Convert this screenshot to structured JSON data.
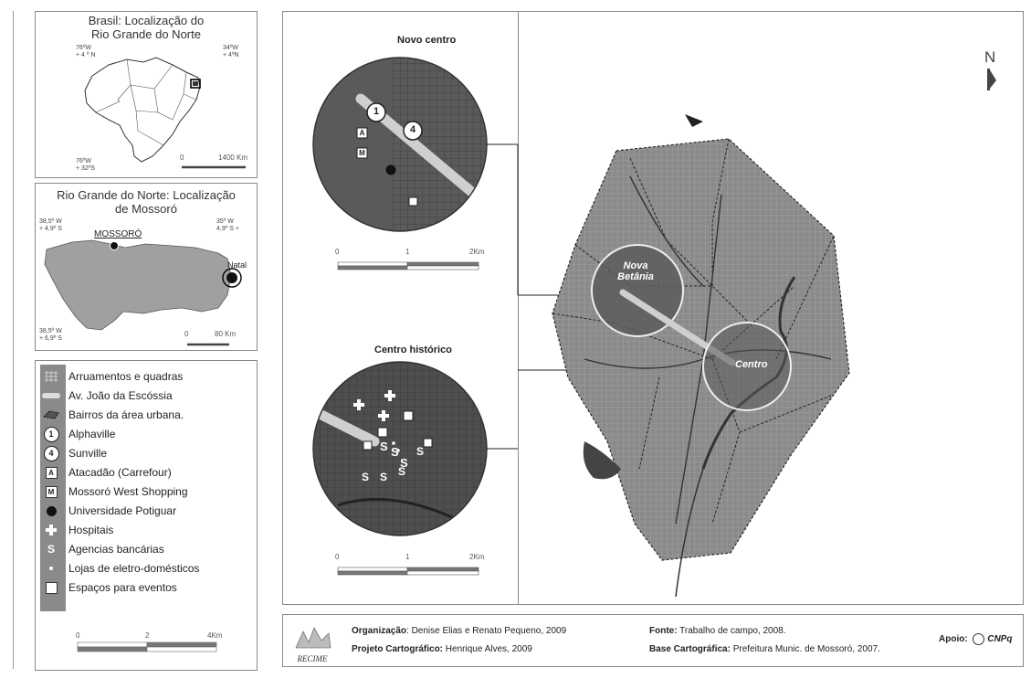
{
  "brazil_panel": {
    "title_line1": "Brasil: Localização do",
    "title_line2": "Rio Grande do Norte",
    "coord_tl_lon": "76ºW",
    "coord_tl_lat": "+ 4 º N",
    "coord_tr_lon": "34ºW",
    "coord_tr_lat": "+ 4ºN",
    "coord_bl_lon": "76ºW",
    "coord_bl_lat": "+ 32ºS",
    "scale_min": "0",
    "scale_max": "1400 Km"
  },
  "rn_panel": {
    "title_line1": "Rio Grande do Norte: Localização",
    "title_line2": "de Mossoró",
    "coord_tl_lon": "38,5º W",
    "coord_tl_lat": "+ 4,9º S",
    "coord_tr_lon": "35º W",
    "coord_tr_lat": "4,9º S  +",
    "coord_bl_lon": "38,5º W",
    "coord_bl_lat": "+ 6,9º S",
    "city_mossoro": "MOSSORÓ",
    "city_natal": "Natal",
    "scale_min": "0",
    "scale_max": "80 Km"
  },
  "legend": {
    "items": [
      {
        "symbol": "blocks-icon",
        "label": "Arruamentos e quadras"
      },
      {
        "symbol": "avenue-icon",
        "label": "Av. João da Escóssia"
      },
      {
        "symbol": "district-boundary-icon",
        "label": "Bairros da área urbana."
      },
      {
        "symbol": "circle-number-icon",
        "glyph": "1",
        "label": "Alphaville"
      },
      {
        "symbol": "circle-number-icon",
        "glyph": "4",
        "label": "Sunville"
      },
      {
        "symbol": "square-letter-icon",
        "glyph": "A",
        "label": "Atacadão (Carrefour)"
      },
      {
        "symbol": "square-letter-icon",
        "glyph": "M",
        "label": "Mossoró West Shopping"
      },
      {
        "symbol": "black-dot-icon",
        "label": "Universidade Potiguar"
      },
      {
        "symbol": "cross-icon",
        "label": "Hospitais"
      },
      {
        "symbol": "dollar-icon",
        "glyph": "S",
        "label": "Agencias bancárias"
      },
      {
        "symbol": "small-dot-icon",
        "label": "Lojas de eletro-domésticos"
      },
      {
        "symbol": "white-square-icon",
        "label": "Espaços para eventos"
      }
    ],
    "scale_min": "0",
    "scale_mid": "2",
    "scale_max": "4Km"
  },
  "main_map": {
    "inset_novo_title": "Novo centro",
    "inset_historico_title": "Centro histórico",
    "inset_scale_min": "0",
    "inset_scale_mid": "1",
    "inset_scale_max": "2Km",
    "label_nova_betania_1": "Nova",
    "label_nova_betania_2": "Betânia",
    "label_centro": "Centro",
    "north": "N",
    "marker_1": "1",
    "marker_4": "4",
    "marker_a": "A",
    "marker_m": "M",
    "bank_glyph": "S"
  },
  "credits": {
    "logo_text": "RECIME",
    "org_label": "Organização",
    "org_value": ": Denise Elias e Renato Pequeno, 2009",
    "proj_label": "Projeto Cartográfico:",
    "proj_value": " Henrique Alves, 2009",
    "fonte_label": "Fonte:",
    "fonte_value": " Trabalho de campo, 2008.",
    "base_label": "Base Cartográfica:",
    "base_value": " Prefeitura Munic. de Mossoró, 2007.",
    "apoio_label": "Apoio:",
    "apoio_value": "CNPq"
  },
  "colors": {
    "urban_fill": "#8a8a8a",
    "inset_fill": "#5a5a5a",
    "state_fill": "#a0a0a0",
    "avenue": "#d8d8d8",
    "river": "#444444"
  }
}
